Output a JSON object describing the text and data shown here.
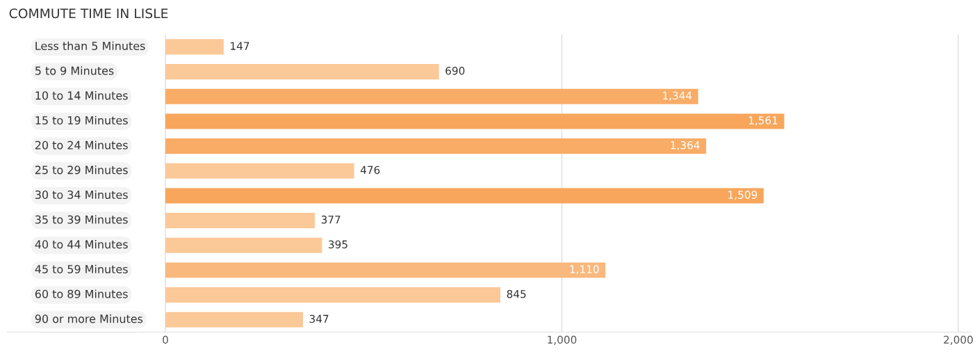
{
  "chart_data": {
    "type": "bar",
    "orientation": "horizontal",
    "title": "COMMUTE TIME IN LISLE",
    "categories": [
      "Less than 5 Minutes",
      "5 to 9 Minutes",
      "10 to 14 Minutes",
      "15 to 19 Minutes",
      "20 to 24 Minutes",
      "25 to 29 Minutes",
      "30 to 34 Minutes",
      "35 to 39 Minutes",
      "40 to 44 Minutes",
      "45 to 59 Minutes",
      "60 to 89 Minutes",
      "90 or more Minutes"
    ],
    "values": [
      147,
      690,
      1344,
      1561,
      1364,
      476,
      1509,
      377,
      395,
      1110,
      845,
      347
    ],
    "colors": [
      "#fbc897",
      "#fbc897",
      "#f8ac66",
      "#f7a65c",
      "#f8ac66",
      "#fbc897",
      "#f7a65c",
      "#fbc897",
      "#fbc897",
      "#f9b87d",
      "#fbc897",
      "#fbc897"
    ],
    "value_labels": [
      "147",
      "690",
      "1,344",
      "1,561",
      "1,364",
      "476",
      "1,509",
      "377",
      "395",
      "1,110",
      "845",
      "347"
    ],
    "xlim": [
      -400,
      2030
    ],
    "xticks": [
      0,
      {
        "value": 1000,
        "label": "1,000"
      },
      {
        "value": 2000,
        "label": "2,000"
      }
    ],
    "grid": "x",
    "legend": false
  }
}
